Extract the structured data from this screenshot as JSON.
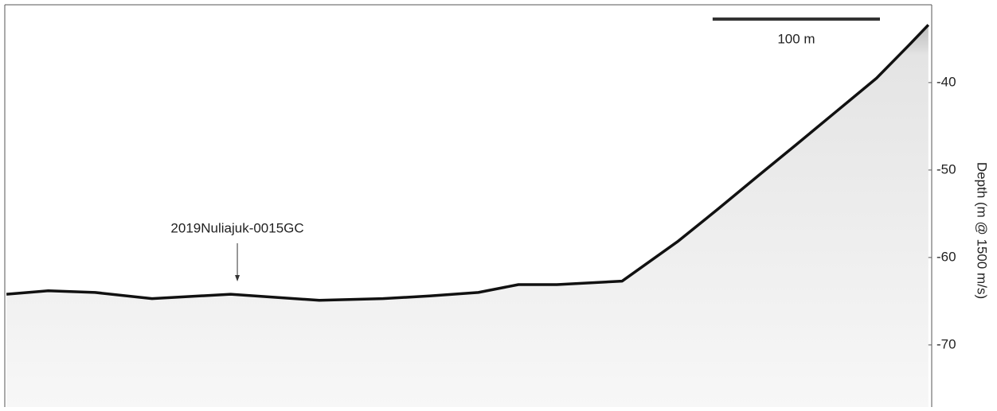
{
  "chart_data": {
    "type": "line",
    "y_label": "Depth (m @ 1500 m/s)",
    "xlim": [
      0,
      554
    ],
    "ylim": [
      -77.1,
      -31.1
    ],
    "yticks": [
      -40,
      -50,
      -60,
      -70
    ],
    "series": [
      {
        "color": "#111111",
        "x": [
          1,
          26,
          54,
          88,
          135,
          188,
          226,
          254,
          283,
          307,
          330,
          369,
          402,
          426,
          450,
          473,
          497,
          521,
          540,
          552
        ],
        "values": [
          -64.2,
          -63.8,
          -64.0,
          -64.7,
          -64.2,
          -64.9,
          -64.7,
          -64.4,
          -64.0,
          -63.1,
          -63.1,
          -62.7,
          -58.2,
          -54.5,
          -50.7,
          -47.1,
          -43.3,
          -39.5,
          -35.8,
          -33.4
        ]
      }
    ],
    "scale_bar": {
      "length": 100,
      "label": "100 m"
    },
    "annotation": {
      "text": "2019Nuliajuk-0015GC",
      "x": 139
    }
  }
}
